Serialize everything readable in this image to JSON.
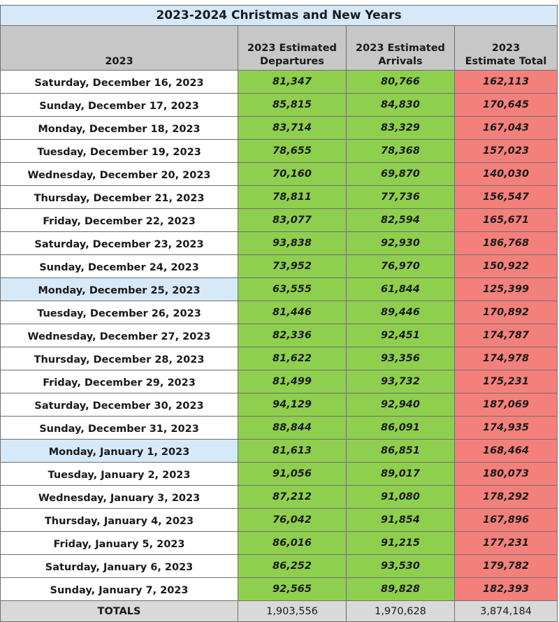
{
  "chart_data": {
    "type": "table",
    "title": "2023-2024 Christmas and New Years",
    "columns": [
      "2023",
      "2023 Estimated Departures",
      "2023 Estimated Arrivals",
      "2023 Estimate Total"
    ],
    "column_lines": [
      [
        "2023"
      ],
      [
        "2023 Estimated",
        "Departures"
      ],
      [
        "2023 Estimated",
        "Arrivals"
      ],
      [
        "2023",
        "Estimate Total"
      ]
    ],
    "rows": [
      {
        "date": "Saturday, December 16, 2023",
        "departures": "81,347",
        "arrivals": "80,766",
        "total": "162,113",
        "holiday": false
      },
      {
        "date": "Sunday, December 17, 2023",
        "departures": "85,815",
        "arrivals": "84,830",
        "total": "170,645",
        "holiday": false
      },
      {
        "date": "Monday, December 18, 2023",
        "departures": "83,714",
        "arrivals": "83,329",
        "total": "167,043",
        "holiday": false
      },
      {
        "date": "Tuesday, December 19, 2023",
        "departures": "78,655",
        "arrivals": "78,368",
        "total": "157,023",
        "holiday": false
      },
      {
        "date": "Wednesday, December 20, 2023",
        "departures": "70,160",
        "arrivals": "69,870",
        "total": "140,030",
        "holiday": false
      },
      {
        "date": "Thursday, December 21, 2023",
        "departures": "78,811",
        "arrivals": "77,736",
        "total": "156,547",
        "holiday": false
      },
      {
        "date": "Friday, December 22, 2023",
        "departures": "83,077",
        "arrivals": "82,594",
        "total": "165,671",
        "holiday": false
      },
      {
        "date": "Saturday, December 23, 2023",
        "departures": "93,838",
        "arrivals": "92,930",
        "total": "186,768",
        "holiday": false
      },
      {
        "date": "Sunday, December 24, 2023",
        "departures": "73,952",
        "arrivals": "76,970",
        "total": "150,922",
        "holiday": false
      },
      {
        "date": "Monday, December 25, 2023",
        "departures": "63,555",
        "arrivals": "61,844",
        "total": "125,399",
        "holiday": true
      },
      {
        "date": "Tuesday, December 26, 2023",
        "departures": "81,446",
        "arrivals": "89,446",
        "total": "170,892",
        "holiday": false
      },
      {
        "date": "Wednesday, December 27, 2023",
        "departures": "82,336",
        "arrivals": "92,451",
        "total": "174,787",
        "holiday": false
      },
      {
        "date": "Thursday, December 28, 2023",
        "departures": "81,622",
        "arrivals": "93,356",
        "total": "174,978",
        "holiday": false
      },
      {
        "date": "Friday, December 29, 2023",
        "departures": "81,499",
        "arrivals": "93,732",
        "total": "175,231",
        "holiday": false
      },
      {
        "date": "Saturday, December 30, 2023",
        "departures": "94,129",
        "arrivals": "92,940",
        "total": "187,069",
        "holiday": false
      },
      {
        "date": "Sunday, December 31, 2023",
        "departures": "88,844",
        "arrivals": "86,091",
        "total": "174,935",
        "holiday": false
      },
      {
        "date": "Monday, January 1, 2023",
        "departures": "81,613",
        "arrivals": "86,851",
        "total": "168,464",
        "holiday": true
      },
      {
        "date": "Tuesday, January 2, 2023",
        "departures": "91,056",
        "arrivals": "89,017",
        "total": "180,073",
        "holiday": false
      },
      {
        "date": "Wednesday, January 3, 2023",
        "departures": "87,212",
        "arrivals": "91,080",
        "total": "178,292",
        "holiday": false
      },
      {
        "date": "Thursday, January 4, 2023",
        "departures": "76,042",
        "arrivals": "91,854",
        "total": "167,896",
        "holiday": false
      },
      {
        "date": "Friday, January 5, 2023",
        "departures": "86,016",
        "arrivals": "91,215",
        "total": "177,231",
        "holiday": false
      },
      {
        "date": "Saturday, January 6, 2023",
        "departures": "86,252",
        "arrivals": "93,530",
        "total": "179,782",
        "holiday": false
      },
      {
        "date": "Sunday, January 7, 2023",
        "departures": "92,565",
        "arrivals": "89,828",
        "total": "182,393",
        "holiday": false
      }
    ],
    "totals": {
      "label": "TOTALS",
      "departures": "1,903,556",
      "arrivals": "1,970,628",
      "total": "3,874,184"
    },
    "colors": {
      "title_bg": "#d5e9f9",
      "header_bg": "#c7c7c7",
      "departures_bg": "#8fcf4e",
      "arrivals_bg": "#8fcf4e",
      "total_bg": "#f4807b",
      "holiday_bg": "#d5e9f9",
      "totals_bg": "#d9d9d9"
    }
  }
}
